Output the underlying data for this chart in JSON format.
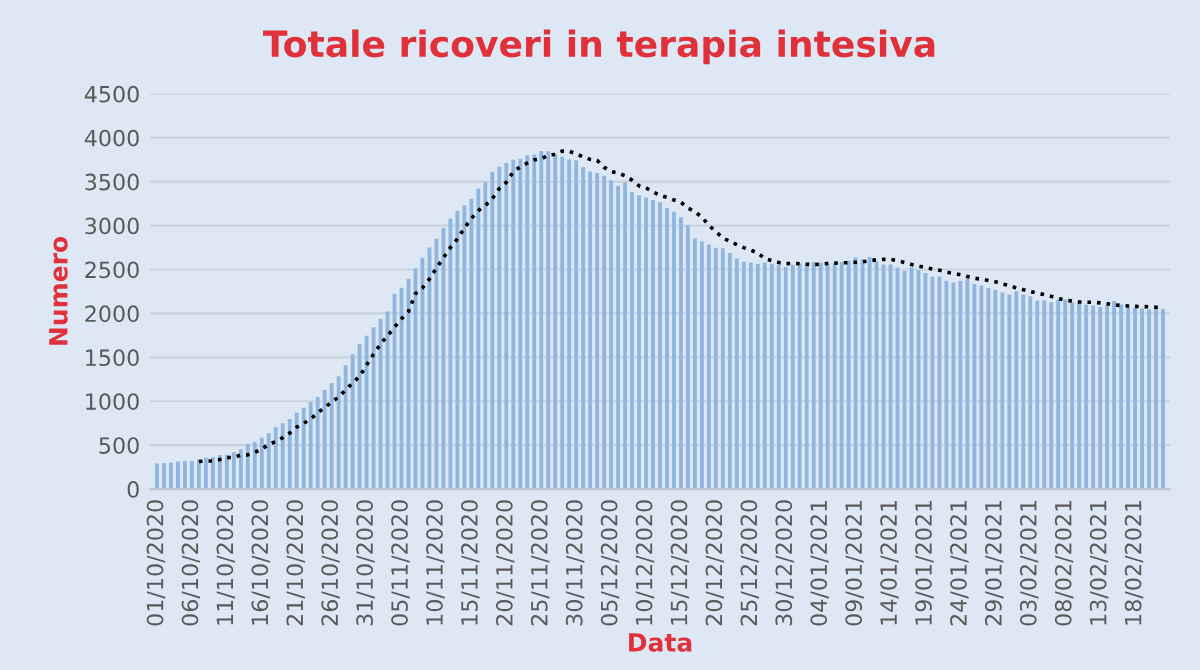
{
  "chart_data": {
    "type": "bar",
    "title": "Totale ricoveri in terapia intesiva",
    "xlabel": "Data",
    "ylabel": "Numero",
    "categories": [
      "01/10/2020",
      null,
      null,
      null,
      null,
      "06/10/2020",
      null,
      null,
      null,
      null,
      "11/10/2020",
      null,
      null,
      null,
      null,
      "16/10/2020",
      null,
      null,
      null,
      null,
      "21/10/2020",
      null,
      null,
      null,
      null,
      "26/10/2020",
      null,
      null,
      null,
      null,
      "31/10/2020",
      null,
      null,
      null,
      null,
      "05/11/2020",
      null,
      null,
      null,
      null,
      "10/11/2020",
      null,
      null,
      null,
      null,
      "15/11/2020",
      null,
      null,
      null,
      null,
      "20/11/2020",
      null,
      null,
      null,
      null,
      "25/11/2020",
      null,
      null,
      null,
      null,
      "30/11/2020",
      null,
      null,
      null,
      null,
      "05/12/2020",
      null,
      null,
      null,
      null,
      "10/12/2020",
      null,
      null,
      null,
      null,
      "15/12/2020",
      null,
      null,
      null,
      null,
      "20/12/2020",
      null,
      null,
      null,
      null,
      "25/12/2020",
      null,
      null,
      null,
      null,
      "30/12/2020",
      null,
      null,
      null,
      null,
      "04/01/2021",
      null,
      null,
      null,
      null,
      "09/01/2021",
      null,
      null,
      null,
      null,
      "14/01/2021",
      null,
      null,
      null,
      null,
      "19/01/2021",
      null,
      null,
      null,
      null,
      "24/01/2021",
      null,
      null,
      null,
      null,
      "29/01/2021",
      null,
      null,
      null,
      null,
      "03/02/2021",
      null,
      null,
      null,
      null,
      "08/02/2021",
      null,
      null,
      null,
      null,
      "13/02/2021",
      null,
      null,
      null,
      null,
      "18/02/2021",
      null,
      null,
      null,
      null
    ],
    "series": [
      {
        "color": "#8fb6e0",
        "values": [
          291,
          295,
          303,
          314,
          319,
          320,
          337,
          358,
          362,
          387,
          390,
          420,
          452,
          514,
          539,
          586,
          638,
          705,
          750,
          797,
          870,
          926,
          992,
          1049,
          1128,
          1208,
          1284,
          1411,
          1536,
          1651,
          1746,
          1843,
          1939,
          2022,
          2225,
          2292,
          2391,
          2515,
          2634,
          2749,
          2849,
          2971,
          3081,
          3170,
          3230,
          3306,
          3422,
          3492,
          3612,
          3670,
          3712,
          3748,
          3758,
          3801,
          3810,
          3848,
          3846,
          3816,
          3782,
          3753,
          3744,
          3663,
          3616,
          3597,
          3567,
          3517,
          3452,
          3492,
          3382,
          3345,
          3320,
          3291,
          3265,
          3199,
          3158,
          3095,
          3003,
          2855,
          2819,
          2784,
          2748,
          2743,
          2687,
          2624,
          2589,
          2579,
          2566,
          2580,
          2565,
          2549,
          2528,
          2555,
          2569,
          2569,
          2585,
          2579,
          2569,
          2571,
          2587,
          2600,
          2636,
          2615,
          2642,
          2587,
          2557,
          2557,
          2522,
          2487,
          2522,
          2491,
          2461,
          2418,
          2420,
          2372,
          2352,
          2372,
          2395,
          2336,
          2319,
          2289,
          2270,
          2238,
          2214,
          2252,
          2214,
          2194,
          2143,
          2147,
          2128,
          2155,
          2157,
          2126,
          2128,
          2098,
          2089,
          2074,
          2094,
          2142,
          2102,
          2074,
          2063,
          2057,
          2045,
          2051,
          2050
        ]
      },
      {
        "type": "line",
        "color": "#000000",
        "line_style": "dotted",
        "values": [
          null,
          null,
          null,
          null,
          null,
          null,
          314,
          319,
          320,
          337,
          358,
          362,
          387,
          390,
          420,
          452,
          514,
          539,
          586,
          638,
          705,
          750,
          797,
          870,
          926,
          992,
          1049,
          1128,
          1208,
          1284,
          1411,
          1536,
          1651,
          1746,
          1843,
          1939,
          2022,
          2225,
          2292,
          2391,
          2515,
          2634,
          2749,
          2849,
          2971,
          3081,
          3170,
          3230,
          3306,
          3422,
          3492,
          3612,
          3670,
          3712,
          3748,
          3758,
          3801,
          3810,
          3848,
          3846,
          3816,
          3782,
          3753,
          3744,
          3663,
          3616,
          3597,
          3567,
          3517,
          3452,
          3430,
          3382,
          3345,
          3320,
          3291,
          3265,
          3199,
          3158,
          3095,
          3003,
          2930,
          2860,
          2819,
          2784,
          2748,
          2720,
          2687,
          2624,
          2600,
          2579,
          2566,
          2570,
          2565,
          2560,
          2555,
          2560,
          2569,
          2572,
          2575,
          2578,
          2582,
          2587,
          2600,
          2610,
          2615,
          2615,
          2600,
          2580,
          2557,
          2540,
          2522,
          2505,
          2491,
          2470,
          2455,
          2440,
          2420,
          2400,
          2390,
          2375,
          2360,
          2336,
          2319,
          2289,
          2270,
          2250,
          2230,
          2214,
          2194,
          2170,
          2150,
          2140,
          2130,
          2128,
          2126,
          2120,
          2110,
          2098,
          2089,
          2085,
          2080,
          2078,
          2075,
          2070,
          2065
        ]
      }
    ],
    "ylim": [
      0,
      4500
    ],
    "yticks": [
      0,
      500,
      1000,
      1500,
      2000,
      2500,
      3000,
      3500,
      4000,
      4500
    ],
    "grid": "y",
    "legend": false
  }
}
